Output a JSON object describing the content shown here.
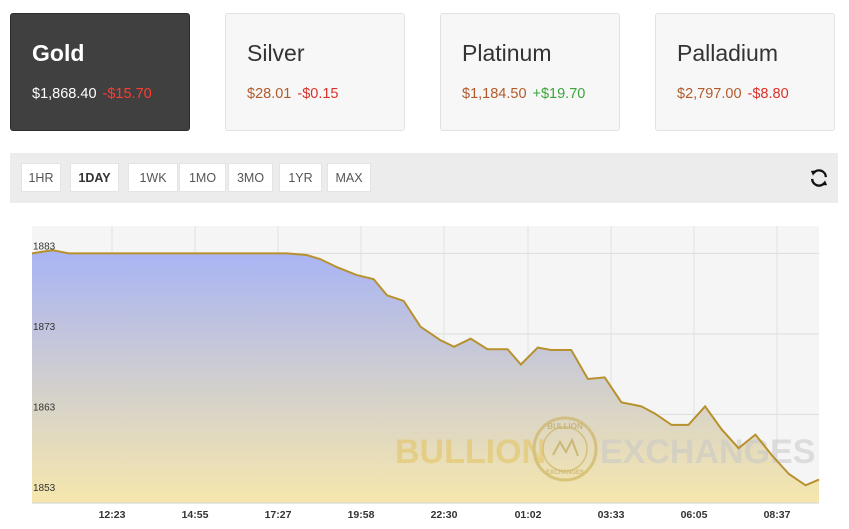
{
  "metals": [
    {
      "name": "Gold",
      "price": "$1,868.40",
      "change": "-$15.70",
      "direction": "down",
      "selected": true
    },
    {
      "name": "Silver",
      "price": "$28.01",
      "change": "-$0.15",
      "direction": "down",
      "selected": false
    },
    {
      "name": "Platinum",
      "price": "$1,184.50",
      "change": "+$19.70",
      "direction": "up",
      "selected": false
    },
    {
      "name": "Palladium",
      "price": "$2,797.00",
      "change": "-$8.80",
      "direction": "down",
      "selected": false
    }
  ],
  "ranges": [
    "1HR",
    "1DAY",
    "1WK",
    "1MO",
    "3MO",
    "1YR",
    "MAX"
  ],
  "active_range": "1DAY",
  "refresh_icon": "refresh-icon",
  "watermark": {
    "left": "BULLION",
    "right": "EXCHANGES",
    "seal_top": "BULLION",
    "seal_bottom": "EXCHANGES"
  },
  "colors": {
    "line": "#b8912f",
    "fill_top": "#a8b4f5",
    "fill_bottom": "#f6e7ac",
    "negative": "#d9322a",
    "positive": "#3aa63a",
    "price": "#b15b2c"
  },
  "chart_data": {
    "type": "area",
    "title": "",
    "xlabel": "",
    "ylabel": "",
    "x_ticks": [
      "12:23",
      "14:55",
      "17:27",
      "19:58",
      "22:30",
      "01:02",
      "03:33",
      "06:05",
      "08:37"
    ],
    "y_ticks": [
      1883,
      1873,
      1863,
      1853
    ],
    "ylim": [
      1852,
      1886.4
    ],
    "xlim": [
      0,
      23.5
    ],
    "grid": true,
    "x": [
      0,
      0.6,
      1.1,
      2,
      4,
      6,
      7.6,
      8.2,
      8.6,
      9.1,
      9.7,
      10.2,
      10.6,
      11.1,
      11.6,
      12.2,
      12.6,
      13.1,
      13.6,
      14.2,
      14.6,
      15.1,
      15.5,
      16.1,
      16.6,
      17.1,
      17.6,
      18.2,
      18.6,
      19.1,
      19.6,
      20.1,
      20.6,
      21.1,
      21.6,
      22.1,
      22.6,
      23.1,
      23.5
    ],
    "y": [
      1883,
      1883.4,
      1883,
      1883,
      1883,
      1883,
      1883,
      1882.8,
      1882.3,
      1881.3,
      1880.3,
      1879.8,
      1877.8,
      1877.1,
      1873.9,
      1872.2,
      1871.4,
      1872.4,
      1871.1,
      1871.1,
      1869.2,
      1871.3,
      1871,
      1871,
      1867.4,
      1867.6,
      1864.5,
      1864,
      1863.1,
      1861.7,
      1861.7,
      1864,
      1861.1,
      1858.8,
      1860.5,
      1857.9,
      1855.6,
      1854.2,
      1854.9
    ]
  }
}
